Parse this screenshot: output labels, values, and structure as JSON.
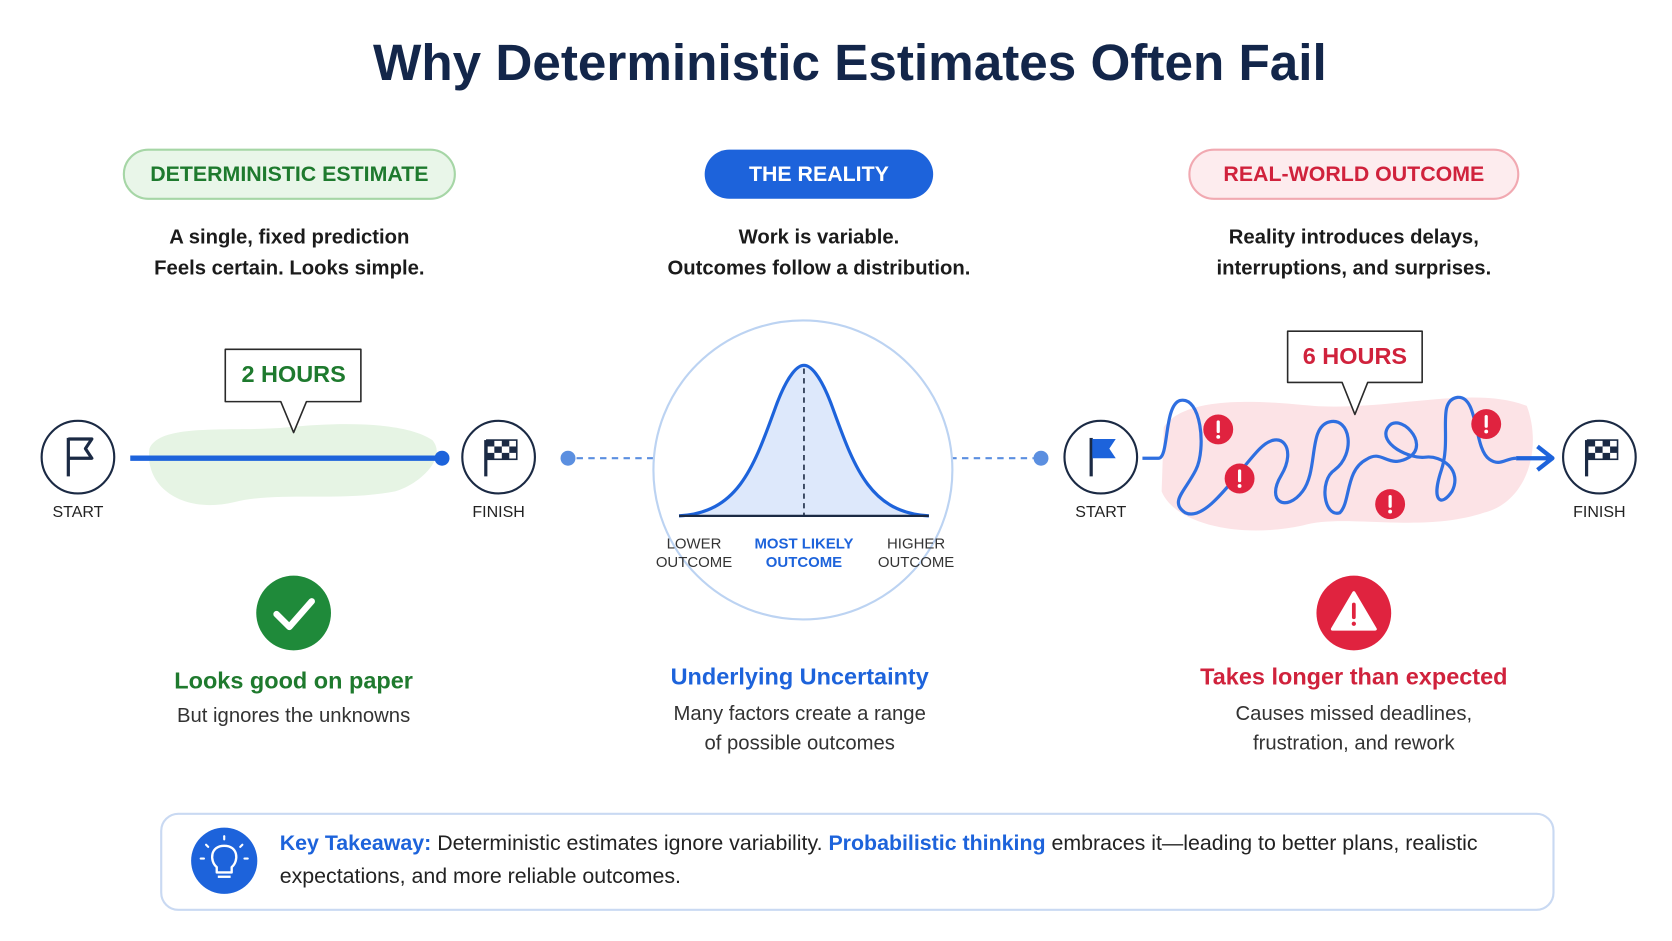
{
  "title": "Why Deterministic Estimates Often Fail",
  "panels": [
    {
      "badge": "DETERMINISTIC ESTIMATE",
      "lines": [
        "A single, fixed prediction",
        "Feels certain. Looks simple."
      ],
      "callout": "2 HOURS",
      "start": "START",
      "finish": "FINISH",
      "heading": "Looks good on paper",
      "body": [
        "But ignores the unknowns"
      ]
    },
    {
      "badge": "THE REALITY",
      "lines": [
        "Work is variable.",
        "Outcomes follow a distribution."
      ],
      "curve_labels": [
        [
          "LOWER",
          "OUTCOME"
        ],
        [
          "MOST LIKELY",
          "OUTCOME"
        ],
        [
          "HIGHER",
          "OUTCOME"
        ]
      ],
      "heading": "Underlying Uncertainty",
      "body": [
        "Many factors create a range",
        "of possible outcomes"
      ]
    },
    {
      "badge": "REAL-WORLD OUTCOME",
      "lines": [
        "Reality introduces delays,",
        "interruptions, and surprises."
      ],
      "callout": "6 HOURS",
      "start": "START",
      "finish": "FINISH",
      "heading": "Takes longer than expected",
      "body": [
        "Causes missed deadlines,",
        "frustration, and rework"
      ]
    }
  ],
  "takeaway": {
    "label": "Key Takeaway:",
    "text1": "Deterministic estimates ignore variability.",
    "emphasis": "Probabilistic thinking",
    "text2": "embraces it—leading to better plans, realistic expectations, and more reliable outcomes."
  }
}
